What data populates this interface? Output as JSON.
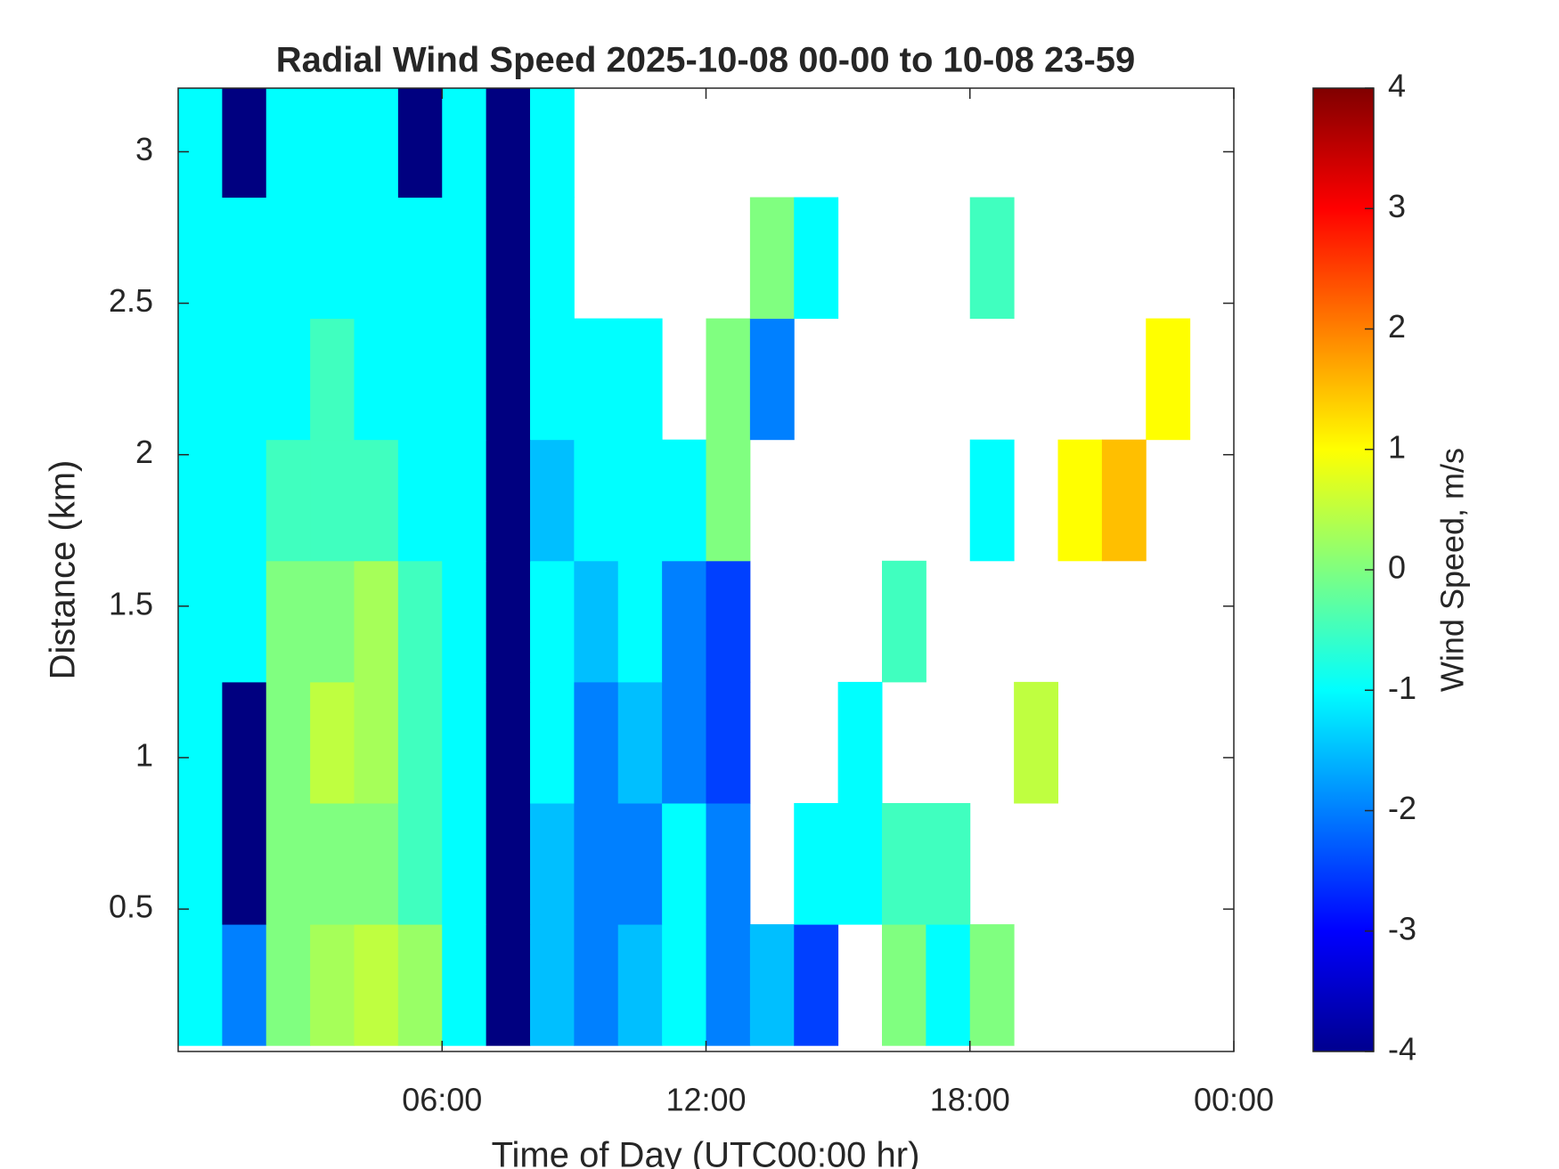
{
  "chart_data": {
    "type": "heatmap",
    "title": "Radial Wind Speed 2025-10-08 00-00 to 10-08 23-59",
    "x_label": "Time of Day (UTC00:00 hr)",
    "y_label": "Distance (km)",
    "colorbar_label": "Wind Speed, m/s",
    "colormap": "jet",
    "x": [
      0.5,
      1.5,
      2.5,
      3.5,
      4.5,
      5.5,
      6.5,
      7.5,
      8.5,
      9.5,
      10.5,
      11.5,
      12.5,
      13.5,
      14.5,
      15.5,
      16.5,
      17.5,
      18.5,
      19.5,
      20.5,
      21.5,
      22.5,
      23.5
    ],
    "y": [
      0.25,
      0.65,
      1.05,
      1.45,
      1.85,
      2.25,
      2.65,
      3.05
    ],
    "z": [
      [
        -1,
        -2,
        0,
        0.3,
        0.5,
        0.2,
        -1,
        -4,
        -1.5,
        -2,
        -1.5,
        -1,
        -2,
        -1.5,
        -2.5,
        null,
        0,
        -1,
        0,
        null,
        null,
        null,
        null,
        null
      ],
      [
        -1,
        -4,
        0,
        0,
        0,
        -0.5,
        -1,
        -4,
        -1.5,
        -2,
        -2,
        -1,
        -2,
        null,
        -1,
        -1,
        -0.5,
        -0.5,
        null,
        null,
        null,
        null,
        null,
        null
      ],
      [
        -1,
        -4,
        0,
        0.5,
        0.3,
        -0.5,
        -1,
        -4,
        -1,
        -2,
        -1.5,
        -2,
        -2.5,
        null,
        null,
        -1,
        null,
        null,
        null,
        0.5,
        null,
        null,
        null,
        null
      ],
      [
        -1,
        -1,
        0,
        0,
        0.3,
        -0.5,
        -1,
        -4,
        -1,
        -1.5,
        -1,
        -2,
        -2.5,
        null,
        null,
        null,
        -0.5,
        null,
        null,
        null,
        null,
        null,
        null,
        null
      ],
      [
        -1,
        -1,
        -0.5,
        -0.5,
        -0.5,
        -1,
        -1,
        -4,
        -1.5,
        -1,
        -1,
        -1,
        0,
        null,
        null,
        null,
        null,
        null,
        -1,
        null,
        1,
        1.5,
        null,
        null
      ],
      [
        -1,
        -1,
        -1,
        -0.5,
        -1,
        -1,
        -1,
        -4,
        -1,
        -1,
        -1,
        null,
        0,
        -2,
        null,
        null,
        null,
        null,
        null,
        null,
        null,
        null,
        1,
        null
      ],
      [
        -1,
        -1,
        -1,
        -1,
        -1,
        -1,
        -1,
        -4,
        -1,
        null,
        null,
        null,
        null,
        0,
        -1,
        null,
        null,
        null,
        -0.5,
        null,
        null,
        null,
        null,
        null
      ],
      [
        -1,
        -4,
        -1,
        -1,
        -1,
        -4,
        -1,
        -4,
        -1,
        null,
        null,
        null,
        null,
        null,
        null,
        null,
        null,
        null,
        null,
        null,
        null,
        null,
        null,
        null
      ]
    ],
    "xlim": [
      0,
      24
    ],
    "xticks": [
      {
        "value": 6,
        "label": "06:00"
      },
      {
        "value": 12,
        "label": "12:00"
      },
      {
        "value": 18,
        "label": "18:00"
      },
      {
        "value": 24,
        "label": "00:00"
      }
    ],
    "ylim": [
      0.03,
      3.21
    ],
    "yticks": [
      0.5,
      1,
      1.5,
      2,
      2.5,
      3
    ],
    "clim": [
      -4,
      4
    ],
    "cticks": [
      -4,
      -3,
      -2,
      -1,
      0,
      1,
      2,
      3,
      4
    ]
  }
}
